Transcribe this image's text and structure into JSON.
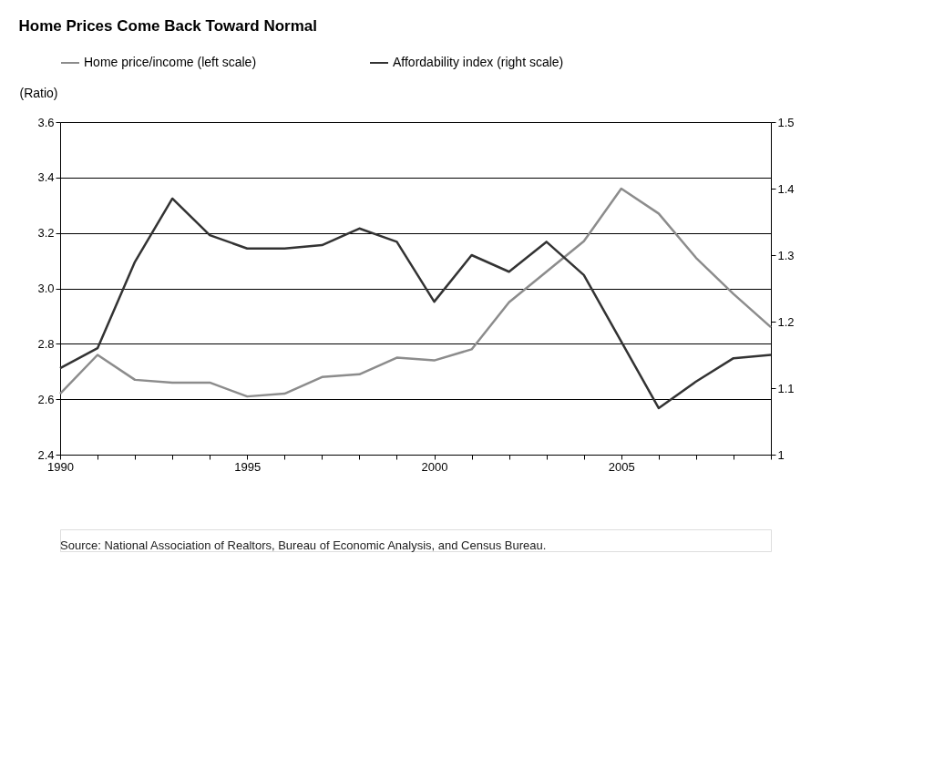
{
  "chart_data": {
    "type": "line",
    "title": "Home Prices Come Back Toward Normal",
    "ylabel": "(Ratio)",
    "x": [
      1990,
      1991,
      1992,
      1993,
      1994,
      1995,
      1996,
      1997,
      1998,
      1999,
      2000,
      2001,
      2002,
      2003,
      2004,
      2005,
      2006,
      2007,
      2008,
      2009
    ],
    "series": [
      {
        "name": "Home price/income (left scale)",
        "color": "#8c8c8c",
        "axis": "y",
        "values": [
          2.62,
          2.76,
          2.67,
          2.66,
          2.66,
          2.61,
          2.62,
          2.68,
          2.69,
          2.75,
          2.74,
          2.78,
          2.95,
          3.06,
          3.17,
          3.36,
          3.27,
          3.11,
          2.98,
          2.86
        ]
      },
      {
        "name": "Affordability index (right scale)",
        "color": "#333333",
        "axis": "y2",
        "values": [
          1.13,
          1.16,
          1.29,
          1.385,
          1.33,
          1.31,
          1.31,
          1.315,
          1.34,
          1.32,
          1.23,
          1.3,
          1.275,
          1.32,
          1.27,
          1.17,
          1.07,
          1.11,
          1.145,
          1.15
        ]
      }
    ],
    "xlim": [
      1990,
      2009
    ],
    "xticks": [
      1990,
      {
        "value": 1991,
        "label": null
      },
      {
        "value": 1992,
        "label": null
      },
      {
        "value": 1993,
        "label": null
      },
      {
        "value": 1994,
        "label": null
      },
      1995,
      {
        "value": 1996,
        "label": null
      },
      {
        "value": 1997,
        "label": null
      },
      {
        "value": 1998,
        "label": null
      },
      {
        "value": 1999,
        "label": null
      },
      2000,
      {
        "value": 2001,
        "label": null
      },
      {
        "value": 2002,
        "label": null
      },
      {
        "value": 2003,
        "label": null
      },
      {
        "value": 2004,
        "label": null
      },
      2005,
      {
        "value": 2006,
        "label": null
      },
      {
        "value": 2007,
        "label": null
      },
      {
        "value": 2008,
        "label": null
      },
      {
        "value": 2009,
        "label": null
      }
    ],
    "ylim": [
      2.4,
      3.6
    ],
    "yticks": [
      2.4,
      2.6,
      2.8,
      {
        "value": 3,
        "label": "3.0"
      },
      3.2,
      3.4,
      3.6
    ],
    "y2lim": [
      1,
      1.5
    ],
    "y2ticks": [
      1,
      1.1,
      1.2,
      1.3,
      1.4,
      1.5
    ],
    "grid": "y",
    "legend": "top",
    "line_style": "solid",
    "annotations": [
      "Source: National Association of Realtors, Bureau of Economic Analysis, and Census Bureau."
    ]
  }
}
